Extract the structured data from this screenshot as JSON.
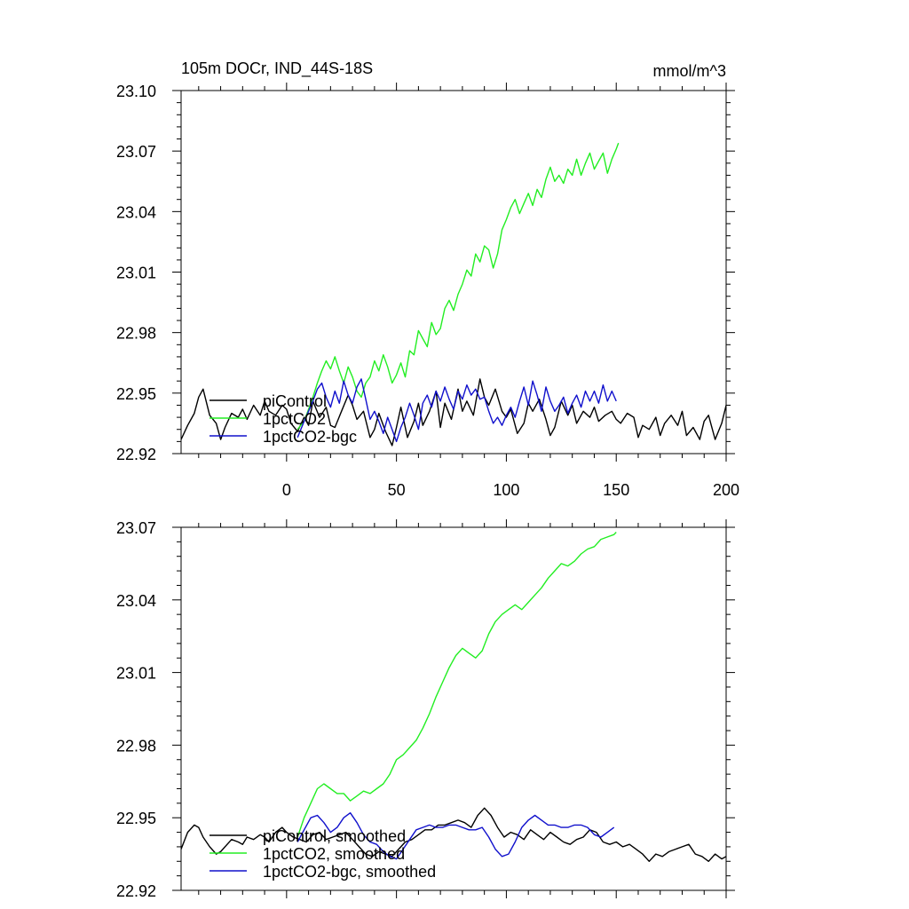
{
  "header": {
    "title": "105m DOCr, IND_44S-18S",
    "units": "mmol/m^3"
  },
  "colors": {
    "piControl": "#000000",
    "1pctCO2": "#22ee22",
    "1pctCO2-bgc": "#1010cc"
  },
  "chart_data": [
    {
      "type": "line",
      "title": "105m DOCr, IND_44S-18S",
      "units": "mmol/m^3",
      "xlim": [
        -48,
        200
      ],
      "ylim": [
        22.92,
        23.1
      ],
      "xticks": [
        0,
        50,
        100,
        150,
        200
      ],
      "xtick_labels": [
        "0",
        "50",
        "100",
        "150",
        "200"
      ],
      "yticks": [
        22.92,
        22.95,
        22.98,
        23.01,
        23.04,
        23.07,
        23.1
      ],
      "ytick_labels": [
        "22.92",
        "22.95",
        "22.98",
        "23.01",
        "23.04",
        "23.07",
        "23.10"
      ],
      "legend": "bottom-left",
      "series": [
        {
          "name": "piControl",
          "color": "#000000",
          "x": [
            -48,
            -45,
            -42,
            -40,
            -38,
            -35,
            -32,
            -30,
            -28,
            -25,
            -22,
            -20,
            -18,
            -15,
            -12,
            -10,
            -8,
            -5,
            -2,
            0,
            2,
            5,
            8,
            10,
            12,
            15,
            18,
            20,
            22,
            25,
            28,
            30,
            32,
            35,
            38,
            40,
            42,
            45,
            48,
            50,
            52,
            55,
            58,
            60,
            62,
            65,
            68,
            70,
            72,
            75,
            78,
            80,
            82,
            85,
            88,
            90,
            92,
            95,
            98,
            100,
            102,
            105,
            108,
            110,
            112,
            115,
            118,
            120,
            122,
            125,
            128,
            130,
            132,
            135,
            138,
            140,
            142,
            145,
            148,
            150,
            152,
            155,
            158,
            160,
            162,
            165,
            168,
            170,
            172,
            175,
            178,
            180,
            182,
            185,
            188,
            190,
            192,
            195,
            198,
            200
          ],
          "y": [
            22.927,
            22.934,
            22.94,
            22.948,
            22.952,
            22.939,
            22.935,
            22.927,
            22.933,
            22.94,
            22.938,
            22.942,
            22.937,
            22.944,
            22.939,
            22.946,
            22.941,
            22.939,
            22.944,
            22.942,
            22.935,
            22.931,
            22.938,
            22.934,
            22.946,
            22.938,
            22.943,
            22.934,
            22.933,
            22.941,
            22.949,
            22.944,
            22.937,
            22.941,
            22.928,
            22.932,
            22.94,
            22.931,
            22.924,
            22.933,
            22.943,
            22.928,
            22.936,
            22.945,
            22.934,
            22.941,
            22.951,
            22.933,
            22.945,
            22.937,
            22.952,
            22.941,
            22.946,
            22.939,
            22.957,
            22.948,
            22.944,
            22.952,
            22.941,
            22.938,
            22.942,
            22.93,
            22.935,
            22.945,
            22.941,
            22.947,
            22.937,
            22.929,
            22.933,
            22.946,
            22.939,
            22.944,
            22.935,
            22.941,
            22.938,
            22.943,
            22.936,
            22.939,
            22.941,
            22.937,
            22.935,
            22.94,
            22.938,
            22.928,
            22.934,
            22.932,
            22.938,
            22.929,
            22.935,
            22.939,
            22.934,
            22.941,
            22.929,
            22.933,
            22.927,
            22.936,
            22.939,
            22.927,
            22.935,
            22.944
          ]
        },
        {
          "name": "1pctCO2",
          "color": "#22ee22",
          "x": [
            5,
            8,
            10,
            12,
            14,
            16,
            18,
            20,
            22,
            24,
            26,
            28,
            30,
            32,
            34,
            36,
            38,
            40,
            42,
            44,
            46,
            48,
            50,
            52,
            54,
            56,
            58,
            60,
            62,
            64,
            66,
            68,
            70,
            72,
            74,
            76,
            78,
            80,
            82,
            84,
            86,
            88,
            90,
            92,
            94,
            96,
            98,
            100,
            102,
            104,
            106,
            108,
            110,
            112,
            114,
            116,
            118,
            120,
            122,
            124,
            126,
            128,
            130,
            132,
            134,
            136,
            138,
            140,
            142,
            144,
            146,
            148,
            150,
            151
          ],
          "y": [
            22.932,
            22.936,
            22.942,
            22.948,
            22.955,
            22.961,
            22.966,
            22.962,
            22.968,
            22.961,
            22.955,
            22.963,
            22.958,
            22.951,
            22.948,
            22.955,
            22.958,
            22.966,
            22.961,
            22.969,
            22.963,
            22.955,
            22.959,
            22.965,
            22.958,
            22.971,
            22.969,
            22.981,
            22.977,
            22.973,
            22.985,
            22.979,
            22.982,
            22.992,
            22.996,
            22.991,
            22.999,
            23.004,
            23.011,
            23.008,
            23.019,
            23.015,
            23.023,
            23.021,
            23.012,
            23.019,
            23.031,
            23.036,
            23.042,
            23.046,
            23.039,
            23.044,
            23.049,
            23.043,
            23.051,
            23.047,
            23.056,
            23.062,
            23.055,
            23.058,
            23.054,
            23.061,
            23.058,
            23.066,
            23.058,
            23.064,
            23.069,
            23.061,
            23.065,
            23.069,
            23.059,
            23.066,
            23.071,
            23.074
          ]
        },
        {
          "name": "1pctCO2-bgc",
          "color": "#1010cc",
          "x": [
            5,
            8,
            10,
            12,
            14,
            16,
            18,
            20,
            22,
            24,
            26,
            28,
            30,
            32,
            34,
            36,
            38,
            40,
            42,
            44,
            46,
            48,
            50,
            52,
            54,
            56,
            58,
            60,
            62,
            64,
            66,
            68,
            70,
            72,
            74,
            76,
            78,
            80,
            82,
            84,
            86,
            88,
            90,
            92,
            94,
            96,
            98,
            100,
            102,
            104,
            106,
            108,
            110,
            112,
            114,
            116,
            118,
            120,
            122,
            124,
            126,
            128,
            130,
            132,
            134,
            136,
            138,
            140,
            142,
            144,
            146,
            148,
            150
          ],
          "y": [
            22.928,
            22.936,
            22.941,
            22.946,
            22.952,
            22.955,
            22.948,
            22.943,
            22.951,
            22.945,
            22.956,
            22.949,
            22.945,
            22.953,
            22.957,
            22.947,
            22.937,
            22.941,
            22.936,
            22.93,
            22.938,
            22.932,
            22.926,
            22.933,
            22.938,
            22.945,
            22.939,
            22.932,
            22.945,
            22.949,
            22.943,
            22.951,
            22.946,
            22.953,
            22.947,
            22.942,
            22.951,
            22.947,
            22.954,
            22.949,
            22.952,
            22.947,
            22.948,
            22.941,
            22.935,
            22.938,
            22.934,
            22.939,
            22.943,
            22.938,
            22.946,
            22.953,
            22.944,
            22.956,
            22.949,
            22.941,
            22.953,
            22.946,
            22.941,
            22.944,
            22.948,
            22.94,
            22.945,
            22.949,
            22.943,
            22.951,
            22.946,
            22.951,
            22.945,
            22.954,
            22.946,
            22.951,
            22.946
          ]
        }
      ]
    },
    {
      "type": "line",
      "xlim": [
        -48,
        200
      ],
      "ylim": [
        22.92,
        23.07
      ],
      "xticks": [
        0,
        50,
        100,
        150,
        200
      ],
      "xtick_labels": [
        "",
        "",
        "",
        "",
        ""
      ],
      "yticks": [
        22.92,
        22.95,
        22.98,
        23.01,
        23.04,
        23.07
      ],
      "ytick_labels": [
        "22.92",
        "22.95",
        "22.98",
        "23.01",
        "23.04",
        "23.07"
      ],
      "legend": "bottom-left",
      "series": [
        {
          "name": "piControl, smoothed",
          "color": "#000000",
          "x": [
            -48,
            -45,
            -42,
            -40,
            -38,
            -35,
            -32,
            -30,
            -28,
            -25,
            -22,
            -20,
            -18,
            -15,
            -12,
            -10,
            -8,
            -5,
            -2,
            0,
            3,
            6,
            9,
            12,
            15,
            18,
            21,
            24,
            27,
            30,
            33,
            36,
            39,
            42,
            45,
            48,
            51,
            54,
            57,
            60,
            63,
            66,
            69,
            72,
            75,
            78,
            81,
            84,
            87,
            90,
            93,
            96,
            99,
            102,
            105,
            108,
            111,
            114,
            117,
            120,
            123,
            126,
            129,
            132,
            135,
            138,
            141,
            144,
            147,
            150,
            153,
            156,
            159,
            162,
            165,
            168,
            171,
            174,
            177,
            180,
            183,
            186,
            189,
            192,
            195,
            198,
            200
          ],
          "y": [
            22.937,
            22.944,
            22.947,
            22.946,
            22.942,
            22.938,
            22.935,
            22.936,
            22.938,
            22.941,
            22.94,
            22.939,
            22.942,
            22.941,
            22.943,
            22.942,
            22.94,
            22.944,
            22.946,
            22.944,
            22.942,
            22.941,
            22.94,
            22.943,
            22.944,
            22.941,
            22.942,
            22.943,
            22.944,
            22.941,
            22.938,
            22.935,
            22.934,
            22.936,
            22.935,
            22.934,
            22.937,
            22.94,
            22.941,
            22.943,
            22.945,
            22.945,
            22.947,
            22.947,
            22.948,
            22.949,
            22.948,
            22.946,
            22.951,
            22.954,
            22.951,
            22.946,
            22.942,
            22.944,
            22.943,
            22.941,
            22.945,
            22.943,
            22.941,
            22.944,
            22.942,
            22.94,
            22.939,
            22.941,
            22.942,
            22.945,
            22.944,
            22.94,
            22.939,
            22.94,
            22.938,
            22.939,
            22.937,
            22.935,
            22.932,
            22.935,
            22.934,
            22.936,
            22.937,
            22.938,
            22.939,
            22.935,
            22.934,
            22.932,
            22.935,
            22.933,
            22.934
          ]
        },
        {
          "name": "1pctCO2, smoothed",
          "color": "#22ee22",
          "x": [
            5,
            8,
            11,
            14,
            17,
            20,
            23,
            26,
            29,
            32,
            35,
            38,
            41,
            44,
            47,
            50,
            53,
            56,
            59,
            62,
            65,
            68,
            71,
            74,
            77,
            80,
            83,
            86,
            89,
            92,
            95,
            98,
            101,
            104,
            107,
            110,
            113,
            116,
            119,
            122,
            125,
            128,
            131,
            134,
            137,
            140,
            143,
            146,
            149,
            150
          ],
          "y": [
            22.942,
            22.95,
            22.956,
            22.962,
            22.964,
            22.962,
            22.96,
            22.96,
            22.957,
            22.959,
            22.961,
            22.96,
            22.962,
            22.964,
            22.968,
            22.974,
            22.976,
            22.979,
            22.982,
            22.987,
            22.993,
            23.0,
            23.006,
            23.012,
            23.017,
            23.02,
            23.018,
            23.016,
            23.019,
            23.026,
            23.031,
            23.034,
            23.036,
            23.038,
            23.036,
            23.039,
            23.042,
            23.045,
            23.049,
            23.052,
            23.055,
            23.054,
            23.056,
            23.059,
            23.061,
            23.062,
            23.065,
            23.066,
            23.067,
            23.068
          ]
        },
        {
          "name": "1pctCO2-bgc, smoothed",
          "color": "#1010cc",
          "x": [
            5,
            8,
            11,
            14,
            17,
            20,
            23,
            26,
            29,
            32,
            35,
            38,
            41,
            44,
            47,
            50,
            53,
            56,
            59,
            62,
            65,
            68,
            71,
            74,
            77,
            80,
            83,
            86,
            89,
            92,
            95,
            98,
            101,
            104,
            107,
            110,
            113,
            116,
            119,
            122,
            125,
            128,
            131,
            134,
            137,
            140,
            143,
            146,
            149
          ],
          "y": [
            22.94,
            22.945,
            22.95,
            22.951,
            22.948,
            22.944,
            22.946,
            22.95,
            22.952,
            22.948,
            22.943,
            22.94,
            22.939,
            22.936,
            22.934,
            22.933,
            22.937,
            22.941,
            22.945,
            22.946,
            22.947,
            22.946,
            22.946,
            22.947,
            22.947,
            22.946,
            22.945,
            22.945,
            22.946,
            22.942,
            22.937,
            22.934,
            22.935,
            22.94,
            22.946,
            22.949,
            22.951,
            22.949,
            22.947,
            22.947,
            22.946,
            22.946,
            22.947,
            22.947,
            22.946,
            22.943,
            22.942,
            22.944,
            22.946
          ]
        }
      ]
    }
  ]
}
